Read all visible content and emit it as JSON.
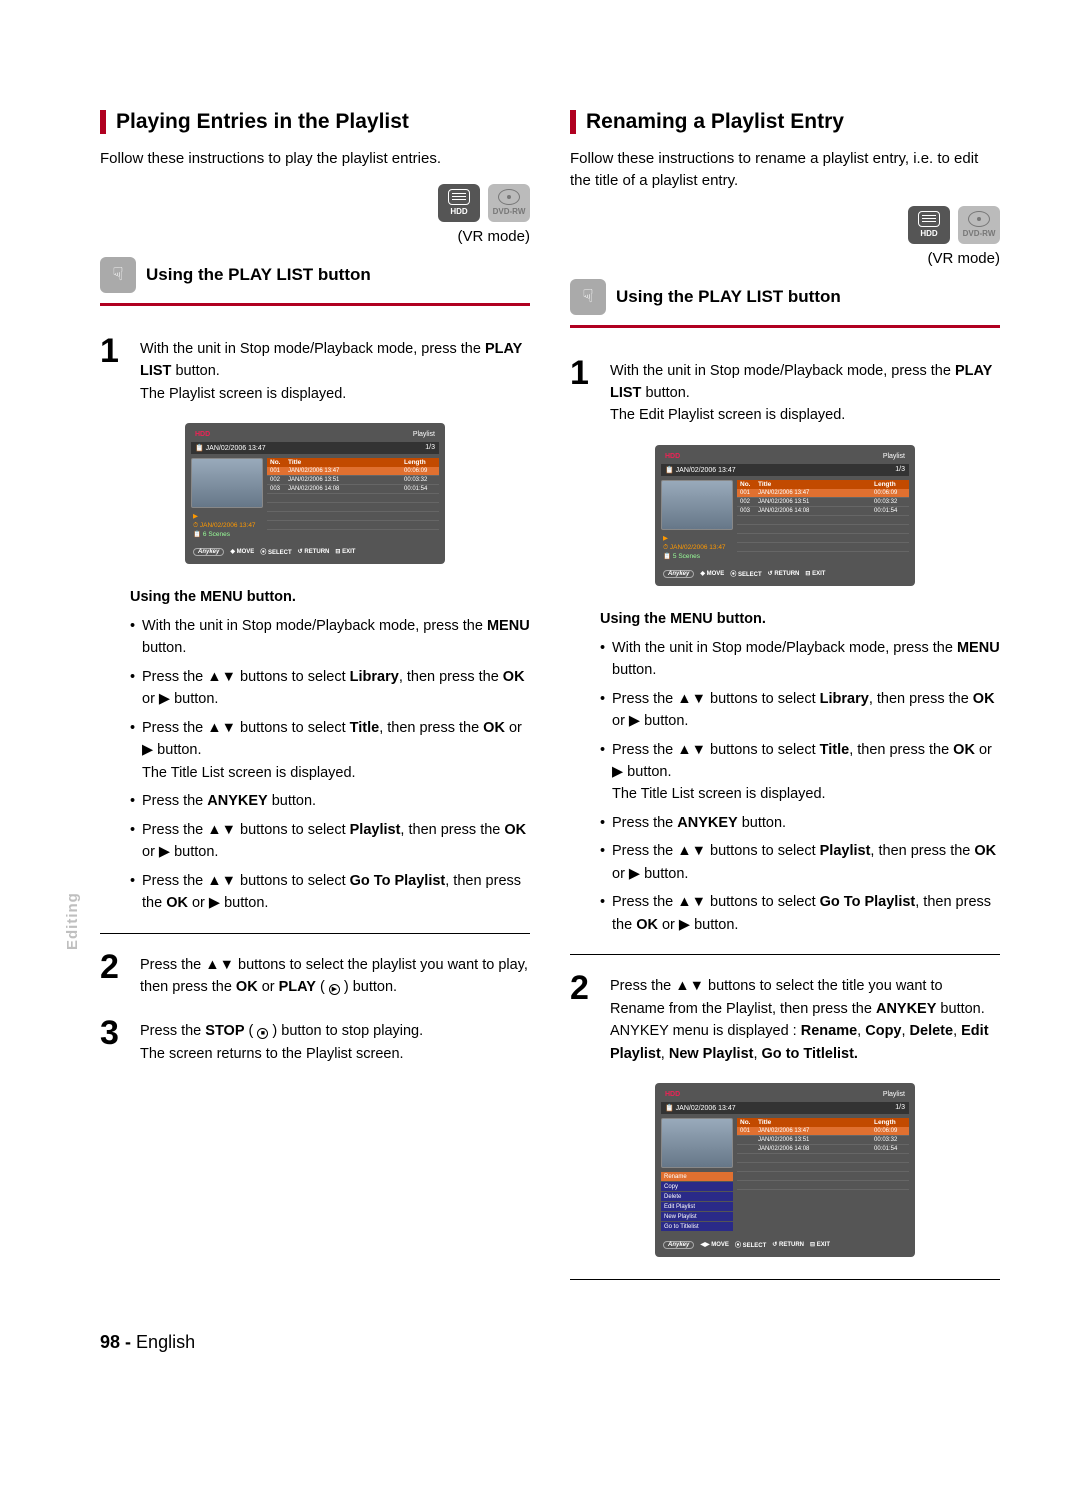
{
  "left": {
    "title": "Playing Entries in the Playlist",
    "intro": "Follow these instructions to play the playlist entries.",
    "hdd_label": "HDD",
    "dvdrw_label": "DVD-RW",
    "vr_mode": "(VR mode)",
    "sub_heading": "Using the PLAY LIST button",
    "step1_a": "With the unit in Stop mode/Playback mode, press the ",
    "step1_b": "PLAY LIST",
    "step1_c": " button.",
    "step1_d": "The Playlist screen is displayed.",
    "menu": {
      "heading": "Using the MENU button.",
      "items": [
        "With the unit in Stop mode/Playback mode, press the <b>MENU</b> button.",
        "Press the <span class='arrows'>▲▼</span> buttons to select <b>Library</b>, then press the <b>OK</b> or <span class='arrows'>▶</span> button.",
        "Press the <span class='arrows'>▲▼</span> buttons to select <b>Title</b>, then press the <b>OK</b> or <span class='arrows'>▶</span> button.<br>The Title List screen is displayed.",
        "Press the <b>ANYKEY</b> button.",
        "Press the <span class='arrows'>▲▼</span> buttons to select <b>Playlist</b>, then press the <b>OK</b> or <span class='arrows'>▶</span> button.",
        "Press the <span class='arrows'>▲▼</span> buttons to select <b>Go To Playlist</b>, then press the <b>OK</b> or <span class='arrows'>▶</span> button."
      ]
    },
    "step2": "Press the <span class='arrows'>▲▼</span> buttons to select the playlist you want to play, then press the <b>OK</b> or <b>PLAY</b> (&nbsp;<span style='display:inline-block;border:1px solid #000;border-radius:50%;width:11px;height:11px;line-height:10px;font-size:7px;text-align:center;'>▶</span>&nbsp;) button.",
    "step3": "Press the <b>STOP</b> (&nbsp;<span style='display:inline-block;border:1px solid #000;border-radius:50%;width:11px;height:11px;line-height:10px;font-size:7px;text-align:center;'>■</span>&nbsp;)  button to stop playing.<br>The screen returns to the Playlist screen."
  },
  "right": {
    "title": "Renaming a Playlist Entry",
    "intro": "Follow these instructions to rename a playlist entry, i.e. to edit the title of a playlist entry.",
    "hdd_label": "HDD",
    "dvdrw_label": "DVD-RW",
    "vr_mode": "(VR mode)",
    "sub_heading": "Using the PLAY LIST button",
    "step1_a": "With the unit in Stop mode/Playback mode, press the ",
    "step1_b": "PLAY LIST",
    "step1_c": " button.",
    "step1_d": "The Edit Playlist screen is displayed.",
    "menu": {
      "heading": "Using the MENU button.",
      "items": [
        "With the unit in Stop mode/Playback mode, press the <b>MENU</b> button.",
        "Press the <span class='arrows'>▲▼</span> buttons to select <b>Library</b>, then press the <b>OK</b> or <span class='arrows'>▶</span> button.",
        "Press the <span class='arrows'>▲▼</span> buttons to select <b>Title</b>, then press the <b>OK</b> or <span class='arrows'>▶</span> button.<br>The Title List screen is displayed.",
        "Press the <b>ANYKEY</b> button.",
        "Press the <span class='arrows'>▲▼</span> buttons to select <b>Playlist</b>, then press the <b>OK</b> or <span class='arrows'>▶</span> button.",
        "Press the <span class='arrows'>▲▼</span> buttons to select <b>Go To Playlist</b>, then press the <b>OK</b> or <span class='arrows'>▶</span> button."
      ]
    },
    "step2": "Press the <span class='arrows'>▲▼</span> buttons to select the title you want to Rename from the Playlist, then press the <b>ANYKEY</b> button.<br>ANYKEY menu is displayed : <b>Rename</b>, <b>Copy</b>, <b>Delete</b>, <b>Edit Playlist</b>, <b>New Playlist</b>, <b>Go to Titlelist.</b>"
  },
  "screenshot": {
    "hdd": "HDD",
    "playlist": "Playlist",
    "date": "JAN/02/2006 13:47",
    "page": "1/3",
    "col_no": "No.",
    "col_title": "Title",
    "col_len": "Length",
    "rows": [
      {
        "no": "001",
        "title": "JAN/02/2006 13:47",
        "len": "00:06:09"
      },
      {
        "no": "002",
        "title": "JAN/02/2006 13:51",
        "len": "00:03:32"
      },
      {
        "no": "003",
        "title": "JAN/02/2006 14:08",
        "len": "00:01:54"
      }
    ],
    "meta_date": "JAN/02/2006 13:47",
    "meta_scenes": "6 Scenes",
    "meta_scenes2": "5 Scenes",
    "foot_move": "MOVE",
    "foot_select": "SELECT",
    "foot_return": "RETURN",
    "foot_exit": "EXIT",
    "ctx": [
      "Rename",
      "Copy",
      "Delete",
      "Edit Playlist",
      "New Playlist",
      "Go to Titlelist"
    ]
  },
  "side_tab": "Editing",
  "page_num": "98 -",
  "page_lang": "English"
}
